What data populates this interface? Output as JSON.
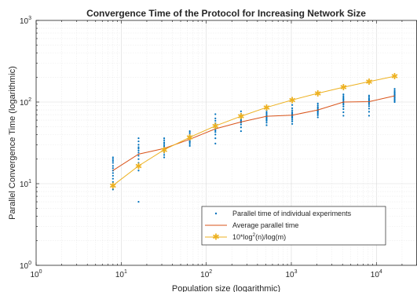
{
  "chart_data": {
    "type": "line",
    "title": "Convergence Time of the Protocol for Increasing Network Size",
    "xlabel": "Population size (logarithmic)",
    "ylabel": "Parallel Convergence Time (logarithmic)",
    "xscale": "log",
    "yscale": "log",
    "xlim": [
      1,
      30000
    ],
    "ylim": [
      1,
      1000
    ],
    "grid": true,
    "legend_position": "bottom-right",
    "xticks": [
      {
        "value": 1,
        "mantissa": "10",
        "exp": "0"
      },
      {
        "value": 10,
        "mantissa": "10",
        "exp": "1"
      },
      {
        "value": 100,
        "mantissa": "10",
        "exp": "2"
      },
      {
        "value": 1000,
        "mantissa": "10",
        "exp": "3"
      },
      {
        "value": 10000,
        "mantissa": "10",
        "exp": "4"
      }
    ],
    "yticks": [
      {
        "value": 1,
        "mantissa": "10",
        "exp": "0"
      },
      {
        "value": 10,
        "mantissa": "10",
        "exp": "1"
      },
      {
        "value": 100,
        "mantissa": "10",
        "exp": "2"
      },
      {
        "value": 1000,
        "mantissa": "10",
        "exp": "3"
      }
    ],
    "series": [
      {
        "name": "Parallel time of individual experiments",
        "kind": "scatter",
        "color": "#0072BD",
        "points": [
          [
            8,
            8.5
          ],
          [
            8,
            9.5
          ],
          [
            8,
            10.5
          ],
          [
            8,
            11.5
          ],
          [
            8,
            12.5
          ],
          [
            8,
            13.5
          ],
          [
            8,
            14.5
          ],
          [
            8,
            15.5
          ],
          [
            8,
            16.5
          ],
          [
            8,
            18
          ],
          [
            8,
            19
          ],
          [
            8,
            20
          ],
          [
            8,
            21
          ],
          [
            16,
            6
          ],
          [
            16,
            14.5
          ],
          [
            16,
            16
          ],
          [
            16,
            18
          ],
          [
            16,
            20
          ],
          [
            16,
            22
          ],
          [
            16,
            24
          ],
          [
            16,
            25.5
          ],
          [
            16,
            27
          ],
          [
            16,
            28
          ],
          [
            16,
            30
          ],
          [
            16,
            33
          ],
          [
            16,
            36
          ],
          [
            32,
            21
          ],
          [
            32,
            22.5
          ],
          [
            32,
            24
          ],
          [
            32,
            25
          ],
          [
            32,
            26
          ],
          [
            32,
            27
          ],
          [
            32,
            28
          ],
          [
            32,
            29
          ],
          [
            32,
            30.5
          ],
          [
            32,
            32
          ],
          [
            32,
            34
          ],
          [
            32,
            36
          ],
          [
            64,
            29
          ],
          [
            64,
            30.5
          ],
          [
            64,
            32
          ],
          [
            64,
            33
          ],
          [
            64,
            34
          ],
          [
            64,
            35
          ],
          [
            64,
            36
          ],
          [
            64,
            37
          ],
          [
            64,
            38.5
          ],
          [
            64,
            40
          ],
          [
            64,
            42
          ],
          [
            64,
            44
          ],
          [
            128,
            31
          ],
          [
            128,
            36
          ],
          [
            128,
            40
          ],
          [
            128,
            43
          ],
          [
            128,
            45
          ],
          [
            128,
            47
          ],
          [
            128,
            49
          ],
          [
            128,
            51
          ],
          [
            128,
            53
          ],
          [
            128,
            55
          ],
          [
            128,
            59
          ],
          [
            128,
            63
          ],
          [
            128,
            71
          ],
          [
            256,
            44
          ],
          [
            256,
            49
          ],
          [
            256,
            53
          ],
          [
            256,
            56
          ],
          [
            256,
            58
          ],
          [
            256,
            60
          ],
          [
            256,
            62
          ],
          [
            256,
            64
          ],
          [
            256,
            66
          ],
          [
            256,
            69
          ],
          [
            256,
            72
          ],
          [
            256,
            77
          ],
          [
            512,
            52
          ],
          [
            512,
            56
          ],
          [
            512,
            59
          ],
          [
            512,
            61
          ],
          [
            512,
            63
          ],
          [
            512,
            65
          ],
          [
            512,
            67
          ],
          [
            512,
            69
          ],
          [
            512,
            72
          ],
          [
            512,
            75
          ],
          [
            512,
            79
          ],
          [
            512,
            85
          ],
          [
            1024,
            54
          ],
          [
            1024,
            58
          ],
          [
            1024,
            61
          ],
          [
            1024,
            64
          ],
          [
            1024,
            66
          ],
          [
            1024,
            68
          ],
          [
            1024,
            70
          ],
          [
            1024,
            72
          ],
          [
            1024,
            75
          ],
          [
            1024,
            79
          ],
          [
            1024,
            84
          ],
          [
            1024,
            92
          ],
          [
            2048,
            65
          ],
          [
            2048,
            69
          ],
          [
            2048,
            72
          ],
          [
            2048,
            75
          ],
          [
            2048,
            77
          ],
          [
            2048,
            79
          ],
          [
            2048,
            81
          ],
          [
            2048,
            84
          ],
          [
            2048,
            87
          ],
          [
            2048,
            91
          ],
          [
            2048,
            96
          ],
          [
            4096,
            68
          ],
          [
            4096,
            75
          ],
          [
            4096,
            82
          ],
          [
            4096,
            88
          ],
          [
            4096,
            93
          ],
          [
            4096,
            97
          ],
          [
            4096,
            101
          ],
          [
            4096,
            105
          ],
          [
            4096,
            109
          ],
          [
            4096,
            113
          ],
          [
            4096,
            118
          ],
          [
            4096,
            124
          ],
          [
            8192,
            68
          ],
          [
            8192,
            76
          ],
          [
            8192,
            83
          ],
          [
            8192,
            89
          ],
          [
            8192,
            94
          ],
          [
            8192,
            98
          ],
          [
            8192,
            102
          ],
          [
            8192,
            106
          ],
          [
            8192,
            110
          ],
          [
            8192,
            115
          ],
          [
            8192,
            120
          ],
          [
            16384,
            100
          ],
          [
            16384,
            104
          ],
          [
            16384,
            108
          ],
          [
            16384,
            112
          ],
          [
            16384,
            116
          ],
          [
            16384,
            120
          ],
          [
            16384,
            124
          ],
          [
            16384,
            128
          ],
          [
            16384,
            133
          ],
          [
            16384,
            138
          ],
          [
            16384,
            145
          ]
        ]
      },
      {
        "name": "Average parallel time",
        "kind": "line",
        "color": "#D95319",
        "x": [
          8,
          16,
          32,
          64,
          128,
          256,
          512,
          1024,
          2048,
          4096,
          8192,
          16384
        ],
        "y": [
          14.5,
          23,
          27,
          35,
          47,
          57,
          67,
          69,
          80,
          100,
          101,
          119
        ]
      },
      {
        "name": "10*log",
        "name_sup": "2",
        "name_tail": "(n)/log(m)",
        "kind": "line-markers",
        "color": "#EDB120",
        "x": [
          8,
          16,
          32,
          64,
          128,
          256,
          512,
          1024,
          2048,
          4096,
          8192,
          16384
        ],
        "y": [
          9.5,
          16.5,
          26,
          37,
          51,
          67,
          86,
          106,
          128,
          152,
          178,
          207
        ]
      }
    ]
  }
}
